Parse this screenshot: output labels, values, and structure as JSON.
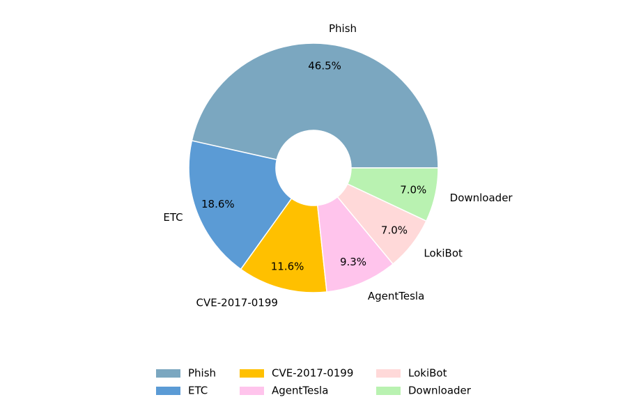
{
  "chart_data": {
    "type": "donut",
    "categories": [
      "Phish",
      "ETC",
      "CVE-2017-0199",
      "AgentTesla",
      "LokiBot",
      "Downloader"
    ],
    "values": [
      46.5,
      18.6,
      11.6,
      9.3,
      7.0,
      7.0
    ],
    "value_labels": [
      "46.5%",
      "18.6%",
      "11.6%",
      "9.3%",
      "7.0%",
      "7.0%"
    ],
    "colors": [
      "#7ba7c0",
      "#5b9bd5",
      "#ffc000",
      "#ffc4ec",
      "#ffd9d9",
      "#b9f2b1"
    ],
    "legend": "bottom"
  }
}
